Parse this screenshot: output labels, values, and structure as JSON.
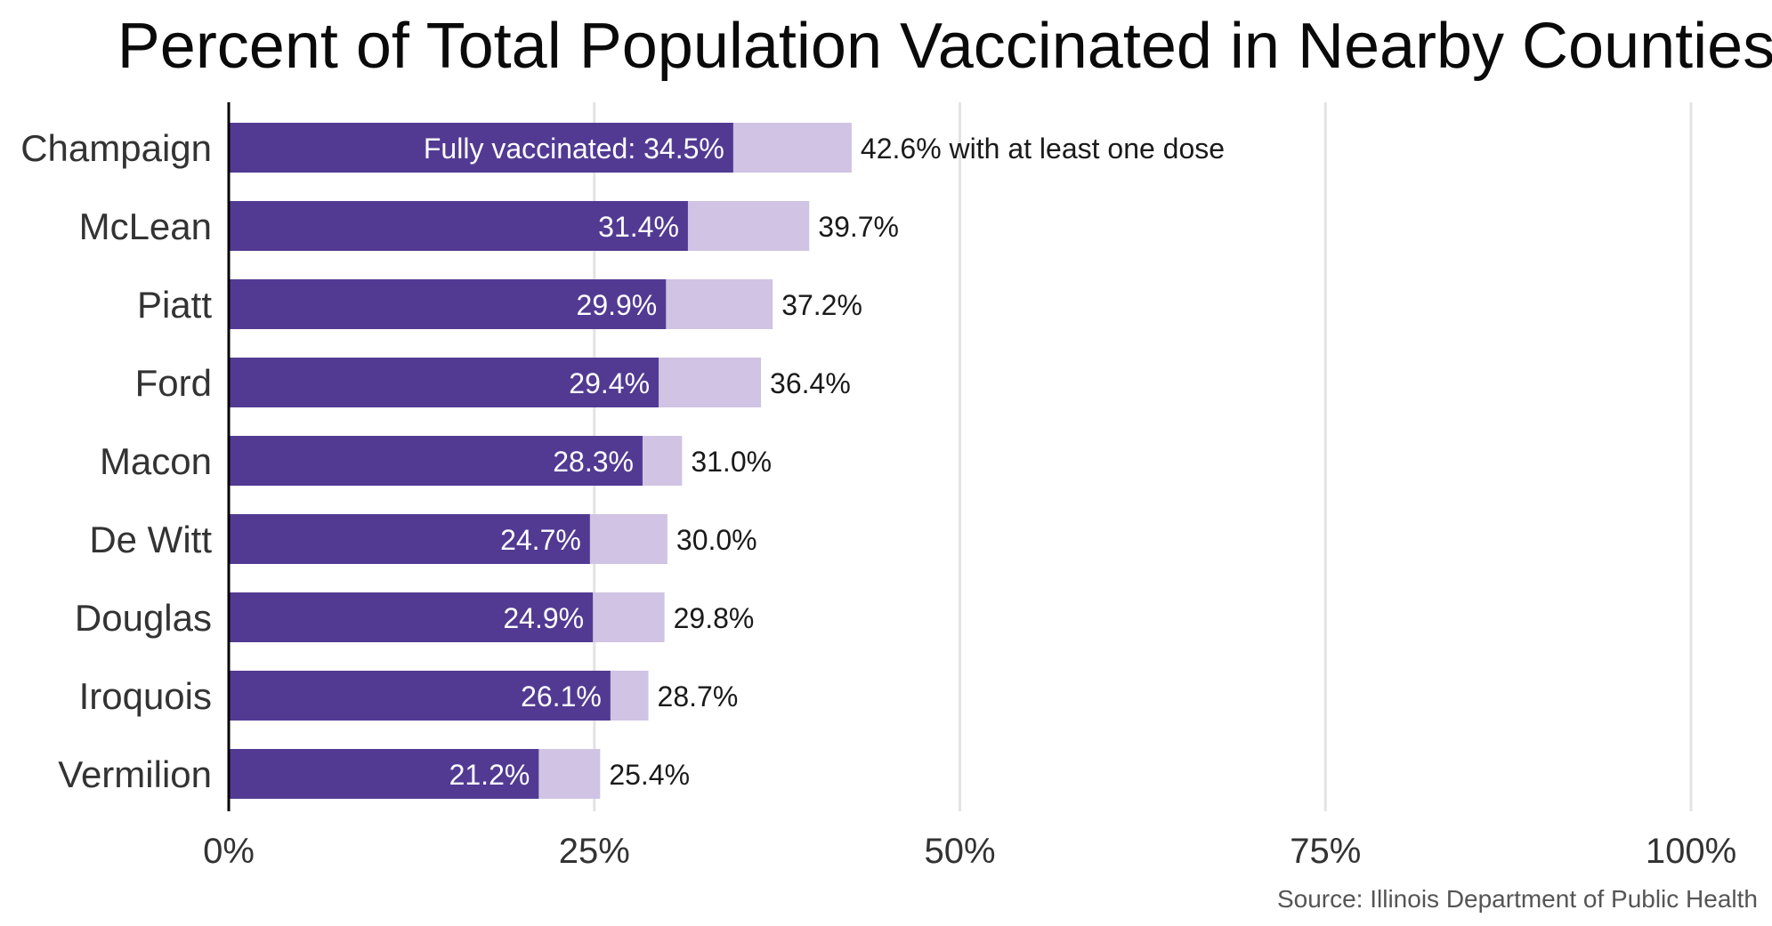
{
  "chart_data": {
    "type": "bar",
    "orientation": "horizontal",
    "stacked": "overlay",
    "title": "Percent of Total Population Vaccinated in Nearby Counties",
    "categories": [
      "Champaign",
      "McLean",
      "Piatt",
      "Ford",
      "Macon",
      "De Witt",
      "Douglas",
      "Iroquois",
      "Vermilion"
    ],
    "series": [
      {
        "values": [
          34.5,
          31.4,
          29.9,
          29.4,
          28.3,
          24.7,
          24.9,
          26.1,
          21.2
        ],
        "color": "#523a93",
        "labels": [
          "Fully vaccinated: 34.5%",
          "31.4%",
          "29.9%",
          "29.4%",
          "28.3%",
          "24.7%",
          "24.9%",
          "26.1%",
          "21.2%"
        ]
      },
      {
        "values": [
          42.6,
          39.7,
          37.2,
          36.4,
          31.0,
          30.0,
          29.8,
          28.7,
          25.4
        ],
        "color": "#d0c3e3",
        "labels": [
          "42.6% with at least one dose",
          "39.7%",
          "37.2%",
          "36.4%",
          "31.0%",
          "30.0%",
          "29.8%",
          "28.7%",
          "25.4%"
        ]
      }
    ],
    "xlim": [
      0,
      100
    ],
    "x_ticks": [
      0,
      25,
      50,
      75,
      100
    ],
    "x_tick_labels": [
      "0%",
      "25%",
      "50%",
      "75%",
      "100%"
    ],
    "grid": "vertical",
    "grid_color": "#e3e3e3",
    "legend": "none",
    "source": "Source: Illinois Department of Public Health"
  }
}
